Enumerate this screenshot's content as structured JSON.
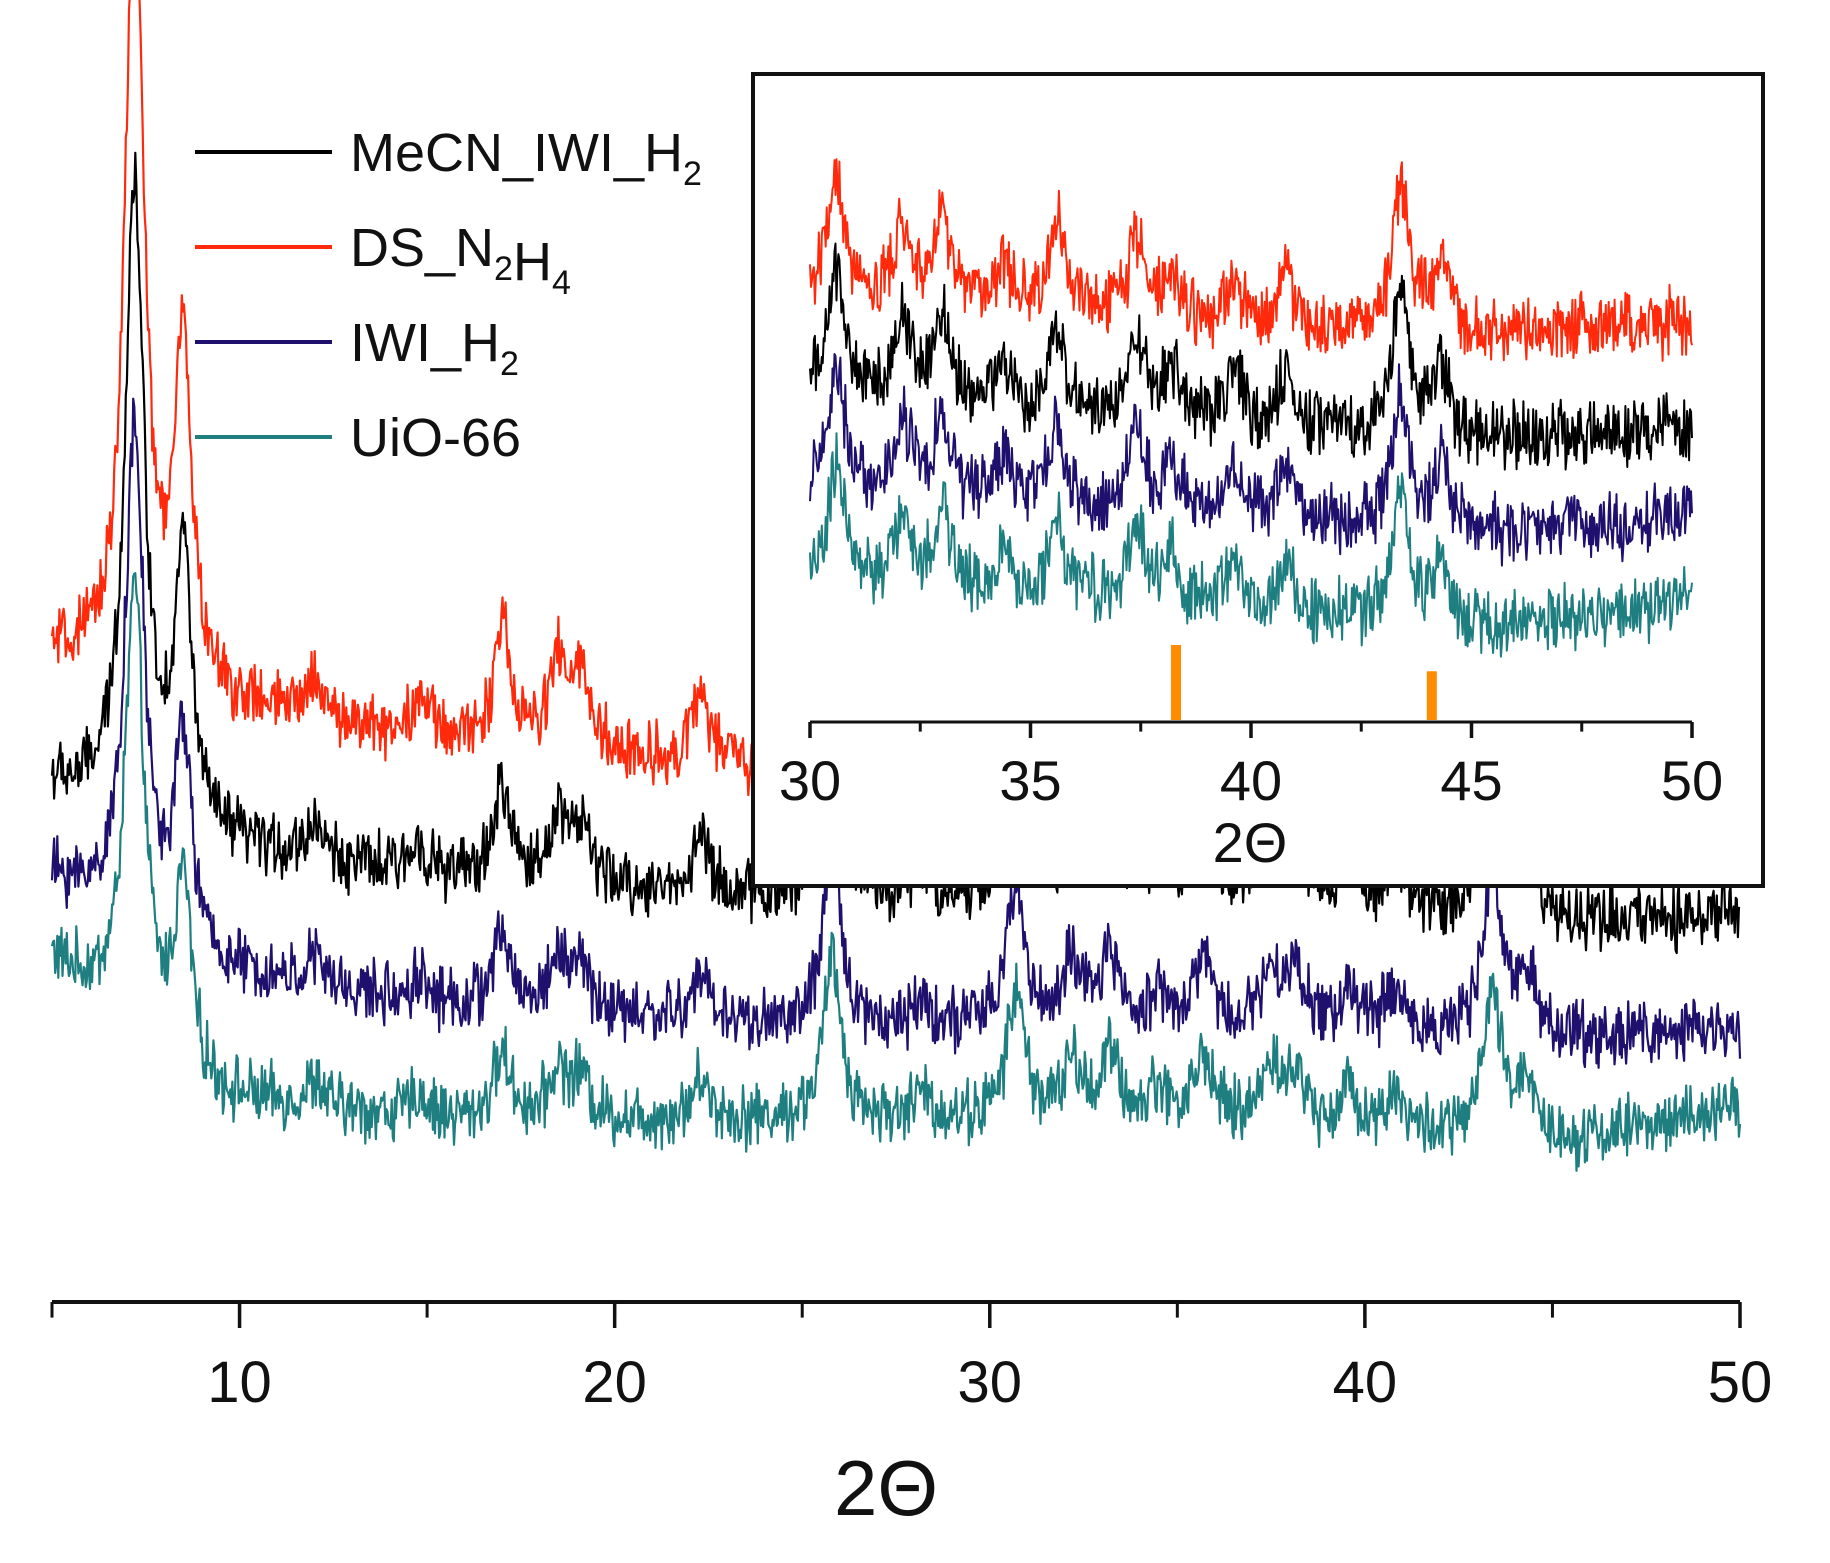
{
  "chart_data": [
    {
      "id": "main",
      "type": "line",
      "title": "",
      "xlabel": "2Θ",
      "ylabel": "",
      "xlim": [
        5,
        50
      ],
      "ylim": [
        0,
        100
      ],
      "yaxis_visible": false,
      "x_ticks": [
        10,
        20,
        30,
        40,
        50
      ],
      "x_minor_step": 5,
      "noise_amplitude": 2.2,
      "peak_width": 0.28,
      "peak_scale": {
        "red": 1.25,
        "black": 1.0,
        "purple": 0.78,
        "teal": 0.7
      },
      "main_peaks": [
        {
          "x": 7.2,
          "h": 100
        },
        {
          "x": 8.5,
          "h": 24
        },
        {
          "x": 12.0,
          "h": 3
        },
        {
          "x": 14.8,
          "h": 3
        },
        {
          "x": 17.0,
          "h": 8
        },
        {
          "x": 18.5,
          "h": 6
        },
        {
          "x": 19.1,
          "h": 5
        },
        {
          "x": 22.3,
          "h": 5
        },
        {
          "x": 25.8,
          "h": 20
        },
        {
          "x": 28.2,
          "h": 3
        },
        {
          "x": 30.7,
          "h": 16
        },
        {
          "x": 32.2,
          "h": 7
        },
        {
          "x": 33.2,
          "h": 8
        },
        {
          "x": 34.5,
          "h": 4
        },
        {
          "x": 35.7,
          "h": 8
        },
        {
          "x": 37.5,
          "h": 8
        },
        {
          "x": 38.2,
          "h": 6
        },
        {
          "x": 39.6,
          "h": 5
        },
        {
          "x": 40.8,
          "h": 5
        },
        {
          "x": 43.4,
          "h": 18
        },
        {
          "x": 44.3,
          "h": 8
        }
      ],
      "series": [
        {
          "name": "DS_N2H4",
          "color": "#ff2a0c",
          "key": "red",
          "baseline": [
            53,
            49,
            46,
            43,
            43,
            39,
            37
          ]
        },
        {
          "name": "MeCN_IWI_H2",
          "color": "#000000",
          "key": "black",
          "baseline": [
            42,
            37,
            34,
            32,
            32,
            30,
            31
          ]
        },
        {
          "name": "IWI_H2",
          "color": "#20106e",
          "key": "purple",
          "baseline": [
            34,
            26,
            23,
            21,
            21,
            20,
            21
          ]
        },
        {
          "name": "UiO-66",
          "color": "#1f7f80",
          "key": "teal",
          "baseline": [
            27,
            15,
            13,
            13,
            13,
            11,
            14
          ]
        }
      ],
      "baseline_x": [
        5,
        9,
        15,
        25,
        35,
        45,
        50
      ]
    },
    {
      "id": "inset",
      "type": "line",
      "title": "",
      "xlabel": "2Θ",
      "ylabel": "",
      "xlim": [
        30,
        50
      ],
      "ylim": [
        0,
        100
      ],
      "yaxis_visible": false,
      "x_ticks": [
        30,
        35,
        40,
        45,
        50
      ],
      "x_minor_step": 2.5,
      "noise_amplitude": 4.5,
      "peak_width": 0.22,
      "peak_scale": {
        "red": 1.0,
        "black": 1.0,
        "purple": 0.9,
        "teal": 0.9
      },
      "main_peaks": [
        {
          "x": 30.6,
          "h": 22
        },
        {
          "x": 32.1,
          "h": 13
        },
        {
          "x": 33.0,
          "h": 15
        },
        {
          "x": 34.4,
          "h": 8
        },
        {
          "x": 35.6,
          "h": 15
        },
        {
          "x": 37.4,
          "h": 14
        },
        {
          "x": 38.2,
          "h": 9
        },
        {
          "x": 39.6,
          "h": 9
        },
        {
          "x": 40.8,
          "h": 9
        },
        {
          "x": 43.4,
          "h": 25
        },
        {
          "x": 44.3,
          "h": 12
        }
      ],
      "series": [
        {
          "name": "DS_N2H4",
          "color": "#ff2a0c",
          "key": "red",
          "baseline": [
            68,
            66,
            62,
            62,
            64
          ]
        },
        {
          "name": "MeCN_IWI_H2",
          "color": "#000000",
          "key": "black",
          "baseline": [
            52,
            48,
            46,
            44,
            46
          ]
        },
        {
          "name": "IWI_H2",
          "color": "#20106e",
          "key": "purple",
          "baseline": [
            36,
            33,
            31,
            28,
            31
          ]
        },
        {
          "name": "UiO-66",
          "color": "#1f7f80",
          "key": "teal",
          "baseline": [
            20,
            17,
            15,
            12,
            17
          ]
        }
      ],
      "baseline_x": [
        30,
        35,
        40,
        45,
        50
      ],
      "reference_markers": [
        {
          "x": 38.3,
          "height": 1.0
        },
        {
          "x": 44.1,
          "height": 0.65
        }
      ],
      "reference_marker_color": "#ff8c00"
    }
  ],
  "legend": {
    "entries": [
      {
        "prefix": "MeCN_IWI_H",
        "sub": "2",
        "rest": "",
        "sub2": "",
        "color": "#000000"
      },
      {
        "prefix": "DS_N",
        "sub": "2",
        "rest": "H",
        "sub2": "4",
        "color": "#ff2a0c"
      },
      {
        "prefix": "IWI_H",
        "sub": "2",
        "rest": "",
        "sub2": "",
        "color": "#20106e"
      },
      {
        "prefix": "UiO-66",
        "sub": "",
        "rest": "",
        "sub2": "",
        "color": "#1f7f80"
      }
    ]
  }
}
